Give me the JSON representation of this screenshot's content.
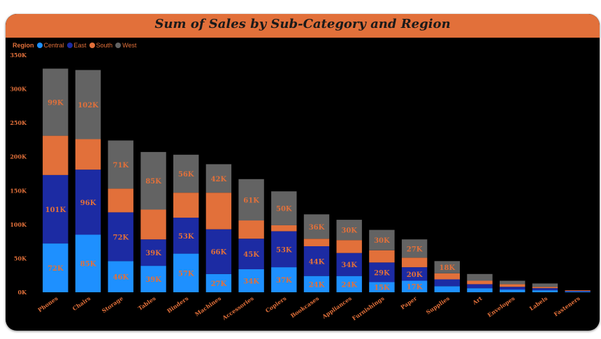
{
  "title": "Sum of Sales by Sub-Category and Region",
  "legend": {
    "title": "Region",
    "items": [
      {
        "name": "Central",
        "color": "#1e90ff"
      },
      {
        "name": "East",
        "color": "#1c2ba3"
      },
      {
        "name": "South",
        "color": "#e2703a"
      },
      {
        "name": "West",
        "color": "#636363"
      }
    ]
  },
  "chart_data": {
    "type": "bar",
    "stacked": true,
    "title": "Sum of Sales by Sub-Category and Region",
    "xlabel": "",
    "ylabel": "",
    "ylim": [
      0,
      350000
    ],
    "yticks": [
      0,
      50000,
      100000,
      150000,
      200000,
      250000,
      300000,
      350000
    ],
    "ytick_labels": [
      "0K",
      "50K",
      "100K",
      "150K",
      "200K",
      "250K",
      "300K",
      "350K"
    ],
    "grid": false,
    "legend_position": "top-left",
    "categories": [
      "Phones",
      "Chairs",
      "Storage",
      "Tables",
      "Binders",
      "Machines",
      "Accessories",
      "Copiers",
      "Bookcases",
      "Appliances",
      "Furnishings",
      "Paper",
      "Supplies",
      "Art",
      "Envelopes",
      "Labels",
      "Fasteners"
    ],
    "series": [
      {
        "name": "Central",
        "color": "#1e90ff",
        "values": [
          72000,
          85000,
          46000,
          39000,
          57000,
          27000,
          34000,
          37000,
          24000,
          24000,
          15000,
          17000,
          9000,
          6000,
          4000,
          3000,
          1000
        ],
        "labels": [
          "72K",
          "85K",
          "46K",
          "39K",
          "57K",
          "27K",
          "34K",
          "37K",
          "24K",
          "24K",
          "15K",
          "17K",
          "",
          "",
          "",
          "",
          ""
        ]
      },
      {
        "name": "East",
        "color": "#1c2ba3",
        "values": [
          101000,
          96000,
          72000,
          39000,
          53000,
          66000,
          45000,
          53000,
          44000,
          34000,
          29000,
          20000,
          10000,
          6000,
          4000,
          3000,
          1000
        ],
        "labels": [
          "101K",
          "96K",
          "72K",
          "39K",
          "53K",
          "66K",
          "45K",
          "53K",
          "44K",
          "34K",
          "29K",
          "20K",
          "",
          "",
          "",
          "",
          ""
        ]
      },
      {
        "name": "South",
        "color": "#e2703a",
        "values": [
          58000,
          45000,
          35000,
          44000,
          37000,
          54000,
          27000,
          9000,
          11000,
          19000,
          18000,
          14000,
          9000,
          5000,
          4000,
          2000,
          1000
        ],
        "labels": [
          "",
          "",
          "",
          "",
          "",
          "",
          "",
          "",
          "",
          "",
          "",
          "",
          "",
          "",
          "",
          "",
          ""
        ]
      },
      {
        "name": "West",
        "color": "#636363",
        "values": [
          99000,
          102000,
          71000,
          85000,
          56000,
          42000,
          61000,
          50000,
          36000,
          30000,
          30000,
          27000,
          18000,
          10000,
          5000,
          5000,
          0
        ],
        "labels": [
          "99K",
          "102K",
          "71K",
          "85K",
          "56K",
          "42K",
          "61K",
          "50K",
          "36K",
          "30K",
          "30K",
          "27K",
          "18K",
          "",
          "",
          "",
          ""
        ]
      }
    ],
    "label_color": "#e2703a"
  }
}
